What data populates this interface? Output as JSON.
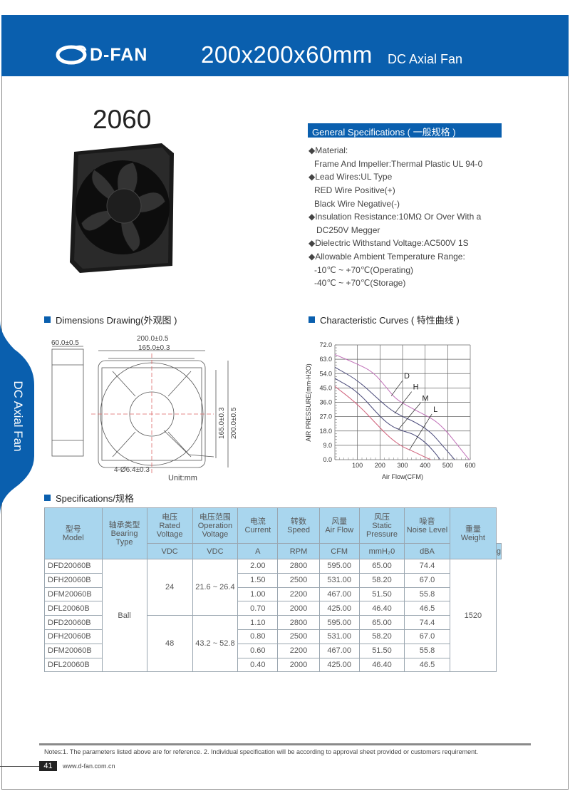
{
  "header": {
    "brand": "D-FAN",
    "size": "200x200x60mm",
    "type": "DC Axial Fan"
  },
  "side_tab": "DC Axial Fan",
  "model_no": "2060",
  "general": {
    "title": "General Specifications ( 一般规格 )",
    "lines": [
      "◆Material:",
      "Frame And Impeller:Thermal Plastic UL 94-0",
      "◆Lead Wires:UL Type",
      "RED Wire Positive(+)",
      "Black Wire Negative(-)",
      "◆Insulation Resistance:10MΩ  Or Over With a",
      "DC250V Megger",
      "◆Dielectric Withstand Voltage:AC500V 1S",
      "◆Allowable Ambient Temperature Range:",
      "-10℃ ~ +70℃(Operating)",
      "-40℃ ~ +70℃(Storage)"
    ]
  },
  "dimensions": {
    "title": "Dimensions Drawing(外观图 )",
    "depth": "60.0±0.5",
    "width": "200.0±0.5",
    "hole_pitch": "165.0±0.3",
    "height": "200.0±0.5",
    "hole_pitch_v": "165.0±0.3",
    "holes": "4-Ø6.4±0.3",
    "unit": "Unit:mm"
  },
  "curves": {
    "title": "Characteristic Curves ( 特性曲线 )",
    "chart_data": {
      "type": "line",
      "xlabel": "Air Flow(CFM)",
      "ylabel": "AIR PRESSURE(mm-H2O)",
      "xlim": [
        0,
        600
      ],
      "ylim": [
        0,
        72
      ],
      "xticks": [
        "100",
        "200",
        "300",
        "400",
        "500",
        "600"
      ],
      "yticks": [
        "72.0",
        "63.0",
        "54.0",
        "45.0",
        "36.0",
        "27.0",
        "18.0",
        "9.0",
        "0.0"
      ],
      "grid": true,
      "series": [
        {
          "name": "D",
          "color": "#c070b8",
          "x": [
            0,
            100,
            170,
            230,
            270,
            330,
            400,
            450,
            500,
            550,
            595
          ],
          "y": [
            66,
            60,
            55,
            45,
            38,
            33,
            28,
            24,
            17,
            8,
            0
          ],
          "label_at": [
            300,
            51
          ],
          "arrow_to": [
            250,
            40
          ]
        },
        {
          "name": "H",
          "color": "#4a4a7a",
          "x": [
            0,
            100,
            200,
            250,
            300,
            350,
            420,
            470,
            531
          ],
          "y": [
            58,
            50,
            37,
            31,
            27,
            24,
            18,
            10,
            0
          ],
          "label_at": [
            340,
            44
          ],
          "arrow_to": [
            265,
            29
          ]
        },
        {
          "name": "M",
          "color": "#4a4a7a",
          "x": [
            0,
            100,
            200,
            250,
            300,
            350,
            400,
            440,
            467
          ],
          "y": [
            51,
            43,
            27,
            21,
            18,
            16,
            11,
            5,
            0
          ],
          "label_at": [
            380,
            37
          ],
          "arrow_to": [
            282,
            19
          ]
        },
        {
          "name": "L",
          "color": "#d0607a",
          "x": [
            0,
            100,
            200,
            250,
            300,
            350,
            400,
            425
          ],
          "y": [
            46,
            35,
            20,
            13,
            8,
            5,
            1.5,
            0
          ],
          "label_at": [
            430,
            30
          ],
          "arrow_to": [
            330,
            6
          ]
        }
      ]
    }
  },
  "specs": {
    "title": "Specifications/规格",
    "headers": [
      [
        "型号",
        "Model"
      ],
      [
        "轴承类型",
        "Bearing Type"
      ],
      [
        "电压",
        "Rated Voltage"
      ],
      [
        "电压范围",
        "Operation Voltage"
      ],
      [
        "电流",
        "Current"
      ],
      [
        "转数",
        "Speed"
      ],
      [
        "风量",
        "Air Flow"
      ],
      [
        "风压",
        "Static Pressure"
      ],
      [
        "噪音",
        "Noise Level"
      ],
      [
        "重量",
        "Weight"
      ]
    ],
    "units": [
      "VDC",
      "VDC",
      "A",
      "RPM",
      "CFM",
      "mmH₂0",
      "dBA",
      "g"
    ],
    "bearing": "Ball",
    "weight": "1520",
    "groups": [
      {
        "rated": "24",
        "range": "21.6 ~ 26.4"
      },
      {
        "rated": "48",
        "range": "43.2 ~ 52.8"
      }
    ],
    "rows": [
      [
        "DFD20060B",
        "2.00",
        "2800",
        "595.00",
        "65.00",
        "74.4"
      ],
      [
        "DFH20060B",
        "1.50",
        "2500",
        "531.00",
        "58.20",
        "67.0"
      ],
      [
        "DFM20060B",
        "1.00",
        "2200",
        "467.00",
        "51.50",
        "55.8"
      ],
      [
        "DFL20060B",
        "0.70",
        "2000",
        "425.00",
        "46.40",
        "46.5"
      ],
      [
        "DFD20060B",
        "1.10",
        "2800",
        "595.00",
        "65.00",
        "74.4"
      ],
      [
        "DFH20060B",
        "0.80",
        "2500",
        "531.00",
        "58.20",
        "67.0"
      ],
      [
        "DFM20060B",
        "0.60",
        "2200",
        "467.00",
        "51.50",
        "55.8"
      ],
      [
        "DFL20060B",
        "0.40",
        "2000",
        "425.00",
        "46.40",
        "46.5"
      ]
    ]
  },
  "footer": {
    "notes": "Notes:1. The parameters listed above are for reference.   2. Individual specification will be according to approval sheet provided or customers requirement.",
    "page": "41",
    "url": "www.d-fan.com.cn"
  },
  "colors": {
    "brand_blue": "#0a5fae",
    "table_header": "#a9d6ee"
  }
}
